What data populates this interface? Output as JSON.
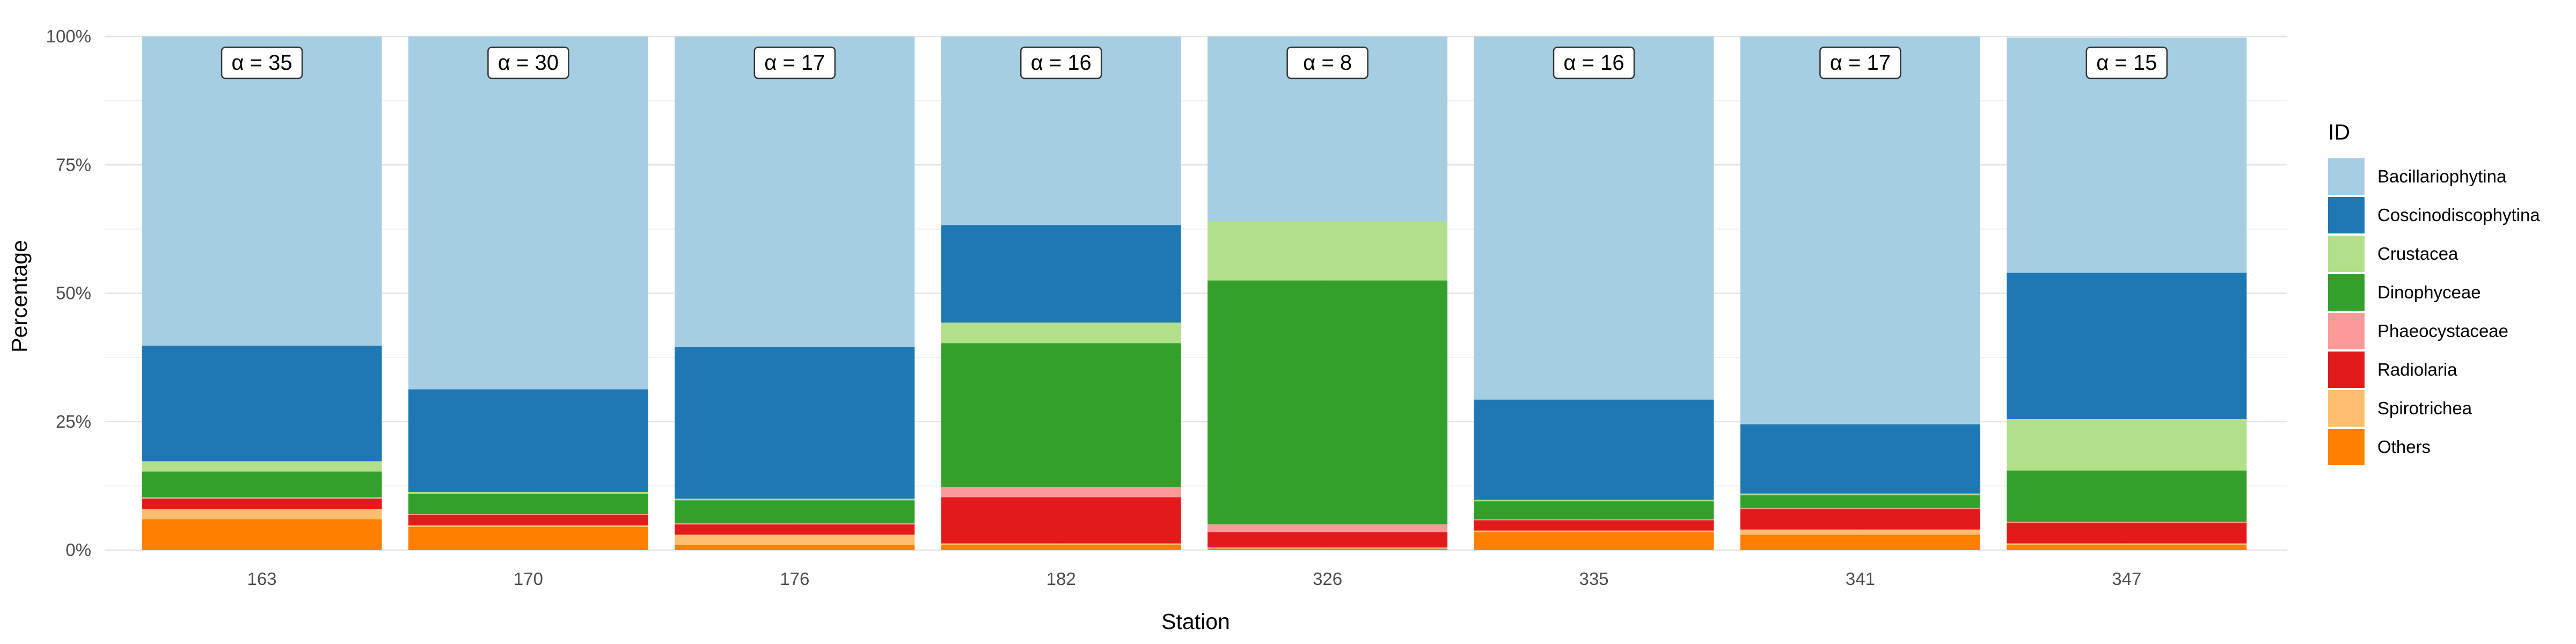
{
  "chart_data": {
    "type": "bar",
    "stacked": true,
    "normalized": true,
    "title": "",
    "xlabel": "Station",
    "ylabel": "Percentage",
    "ylim": [
      0,
      100
    ],
    "y_ticks": [
      "0%",
      "25%",
      "50%",
      "75%",
      "100%"
    ],
    "grid": true,
    "legend_position": "right",
    "legend_title": "ID",
    "categories": [
      "163",
      "170",
      "176",
      "182",
      "326",
      "335",
      "341",
      "347"
    ],
    "annotations": [
      "α = 35",
      "α = 30",
      "α = 17",
      "α = 16",
      "α = 8",
      "α = 16",
      "α = 17",
      "α = 15"
    ],
    "series": [
      {
        "name": "Others",
        "color": "#ff7f00",
        "values": [
          6,
          4.5,
          1,
          1,
          0.3,
          3.5,
          3,
          1
        ]
      },
      {
        "name": "Spirotrichea",
        "color": "#fdbf6f",
        "values": [
          2,
          0.3,
          2,
          0.3,
          0.2,
          0.3,
          1,
          0.3
        ]
      },
      {
        "name": "Radiolaria",
        "color": "#e31a1c",
        "values": [
          2,
          2,
          2,
          9,
          3,
          2,
          4,
          4
        ]
      },
      {
        "name": "Phaeocystaceae",
        "color": "#fb9a99",
        "values": [
          0.3,
          0.2,
          0.2,
          2,
          1.5,
          0.2,
          0.2,
          0.2
        ]
      },
      {
        "name": "Dinophyceae",
        "color": "#33a02c",
        "values": [
          5,
          4,
          4.5,
          28,
          47.5,
          3.5,
          2.5,
          10
        ]
      },
      {
        "name": "Crustacea",
        "color": "#b2df8a",
        "values": [
          2,
          0.3,
          0.3,
          4,
          11.5,
          0.3,
          0.3,
          10
        ]
      },
      {
        "name": "Coscinodiscophytina",
        "color": "#1f78b4",
        "values": [
          22.5,
          20,
          29.5,
          19,
          0,
          19.5,
          13.5,
          28.5
        ]
      },
      {
        "name": "Bacillariophytina",
        "color": "#a6cee3",
        "values": [
          60.2,
          68.7,
          60.5,
          36.7,
          36,
          70.7,
          75.5,
          45.8
        ]
      }
    ],
    "legend_order": [
      "Bacillariophytina",
      "Coscinodiscophytina",
      "Crustacea",
      "Dinophyceae",
      "Phaeocystaceae",
      "Radiolaria",
      "Spirotrichea",
      "Others"
    ]
  }
}
